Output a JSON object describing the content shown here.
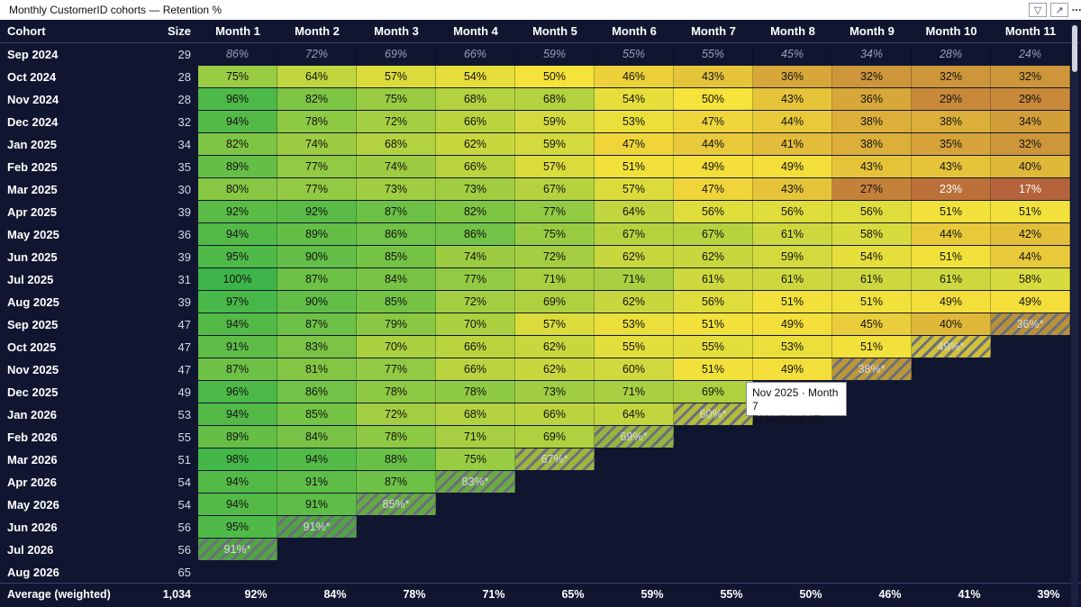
{
  "title": "Monthly CustomerID cohorts — Retention %",
  "icons": [
    "filter-icon",
    "expand-icon",
    "more-options-icon"
  ],
  "header": {
    "cohort": "Cohort",
    "size": "Size"
  },
  "tooltip": {
    "line1": "Nov 2025 · Month 7",
    "line2": "51% (24 of 47)"
  },
  "chart_data": {
    "type": "heatmap",
    "title": "Monthly CustomerID cohorts — Retention %",
    "columns": [
      "Month 1",
      "Month 2",
      "Month 3",
      "Month 4",
      "Month 5",
      "Month 6",
      "Month 7",
      "Month 8",
      "Month 9",
      "Month 10",
      "Month 11"
    ],
    "rows": [
      {
        "cohort": "Sep 2024",
        "size": "29",
        "values": [
          "86%",
          "72%",
          "69%",
          "66%",
          "59%",
          "55%",
          "55%",
          "45%",
          "34%",
          "28%",
          "24%"
        ],
        "prelim_index": null
      },
      {
        "cohort": "Oct 2024",
        "size": "28",
        "values": [
          "75%",
          "64%",
          "57%",
          "54%",
          "50%",
          "46%",
          "43%",
          "36%",
          "32%",
          "32%",
          "32%"
        ],
        "prelim_index": null
      },
      {
        "cohort": "Nov 2024",
        "size": "28",
        "values": [
          "96%",
          "82%",
          "75%",
          "68%",
          "68%",
          "54%",
          "50%",
          "43%",
          "36%",
          "29%",
          "29%"
        ],
        "prelim_index": null
      },
      {
        "cohort": "Dec 2024",
        "size": "32",
        "values": [
          "94%",
          "78%",
          "72%",
          "66%",
          "59%",
          "53%",
          "47%",
          "44%",
          "38%",
          "38%",
          "34%"
        ],
        "prelim_index": null
      },
      {
        "cohort": "Jan 2025",
        "size": "34",
        "values": [
          "82%",
          "74%",
          "68%",
          "62%",
          "59%",
          "47%",
          "44%",
          "41%",
          "38%",
          "35%",
          "32%"
        ],
        "prelim_index": null
      },
      {
        "cohort": "Feb 2025",
        "size": "35",
        "values": [
          "89%",
          "77%",
          "74%",
          "66%",
          "57%",
          "51%",
          "49%",
          "49%",
          "43%",
          "43%",
          "40%"
        ],
        "prelim_index": null
      },
      {
        "cohort": "Mar 2025",
        "size": "30",
        "values": [
          "80%",
          "77%",
          "73%",
          "73%",
          "67%",
          "57%",
          "47%",
          "43%",
          "27%",
          "23%",
          "17%"
        ],
        "prelim_index": null
      },
      {
        "cohort": "Apr 2025",
        "size": "39",
        "values": [
          "92%",
          "92%",
          "87%",
          "82%",
          "77%",
          "64%",
          "56%",
          "56%",
          "56%",
          "51%",
          "51%"
        ],
        "prelim_index": null
      },
      {
        "cohort": "May 2025",
        "size": "36",
        "values": [
          "94%",
          "89%",
          "86%",
          "86%",
          "75%",
          "67%",
          "67%",
          "61%",
          "58%",
          "44%",
          "42%"
        ],
        "prelim_index": null
      },
      {
        "cohort": "Jun 2025",
        "size": "39",
        "values": [
          "95%",
          "90%",
          "85%",
          "74%",
          "72%",
          "62%",
          "62%",
          "59%",
          "54%",
          "51%",
          "44%"
        ],
        "prelim_index": null
      },
      {
        "cohort": "Jul 2025",
        "size": "31",
        "values": [
          "100%",
          "87%",
          "84%",
          "77%",
          "71%",
          "71%",
          "61%",
          "61%",
          "61%",
          "61%",
          "58%"
        ],
        "prelim_index": null
      },
      {
        "cohort": "Aug 2025",
        "size": "39",
        "values": [
          "97%",
          "90%",
          "85%",
          "72%",
          "69%",
          "62%",
          "56%",
          "51%",
          "51%",
          "49%",
          "49%"
        ],
        "prelim_index": null
      },
      {
        "cohort": "Sep 2025",
        "size": "47",
        "values": [
          "94%",
          "87%",
          "79%",
          "70%",
          "57%",
          "53%",
          "51%",
          "49%",
          "45%",
          "40%",
          "36%*"
        ],
        "prelim_index": 10
      },
      {
        "cohort": "Oct 2025",
        "size": "47",
        "values": [
          "91%",
          "83%",
          "70%",
          "66%",
          "62%",
          "55%",
          "55%",
          "53%",
          "51%",
          "49%*"
        ],
        "prelim_index": 9
      },
      {
        "cohort": "Nov 2025",
        "size": "47",
        "values": [
          "87%",
          "81%",
          "77%",
          "66%",
          "62%",
          "60%",
          "51%",
          "49%",
          "38%*"
        ],
        "prelim_index": 8
      },
      {
        "cohort": "Dec 2025",
        "size": "49",
        "values": [
          "96%",
          "86%",
          "78%",
          "78%",
          "73%",
          "71%",
          "69%"
        ],
        "prelim_index": null
      },
      {
        "cohort": "Jan 2026",
        "size": "53",
        "values": [
          "94%",
          "85%",
          "72%",
          "68%",
          "66%",
          "64%",
          "60%*"
        ],
        "prelim_index": 6
      },
      {
        "cohort": "Feb 2026",
        "size": "55",
        "values": [
          "89%",
          "84%",
          "78%",
          "71%",
          "69%",
          "69%*"
        ],
        "prelim_index": 5
      },
      {
        "cohort": "Mar 2026",
        "size": "51",
        "values": [
          "98%",
          "94%",
          "88%",
          "75%",
          "67%*"
        ],
        "prelim_index": 4
      },
      {
        "cohort": "Apr 2026",
        "size": "54",
        "values": [
          "94%",
          "91%",
          "87%",
          "83%*"
        ],
        "prelim_index": 3
      },
      {
        "cohort": "May 2026",
        "size": "54",
        "values": [
          "94%",
          "91%",
          "85%*"
        ],
        "prelim_index": 2
      },
      {
        "cohort": "Jun 2026",
        "size": "56",
        "values": [
          "95%",
          "91%*"
        ],
        "prelim_index": 1
      },
      {
        "cohort": "Jul 2026",
        "size": "56",
        "values": [
          "91%*"
        ],
        "prelim_index": 0
      },
      {
        "cohort": "Aug 2026",
        "size": "65",
        "values": [],
        "prelim_index": null
      }
    ],
    "footer": {
      "label": "Average (weighted)",
      "size": "1,034",
      "values": [
        "92%",
        "84%",
        "78%",
        "71%",
        "65%",
        "59%",
        "55%",
        "50%",
        "46%",
        "41%",
        "39%"
      ]
    },
    "color_scale": {
      "low": "#c8693a",
      "mid": "#f5e23a",
      "high": "#3db54a"
    }
  }
}
